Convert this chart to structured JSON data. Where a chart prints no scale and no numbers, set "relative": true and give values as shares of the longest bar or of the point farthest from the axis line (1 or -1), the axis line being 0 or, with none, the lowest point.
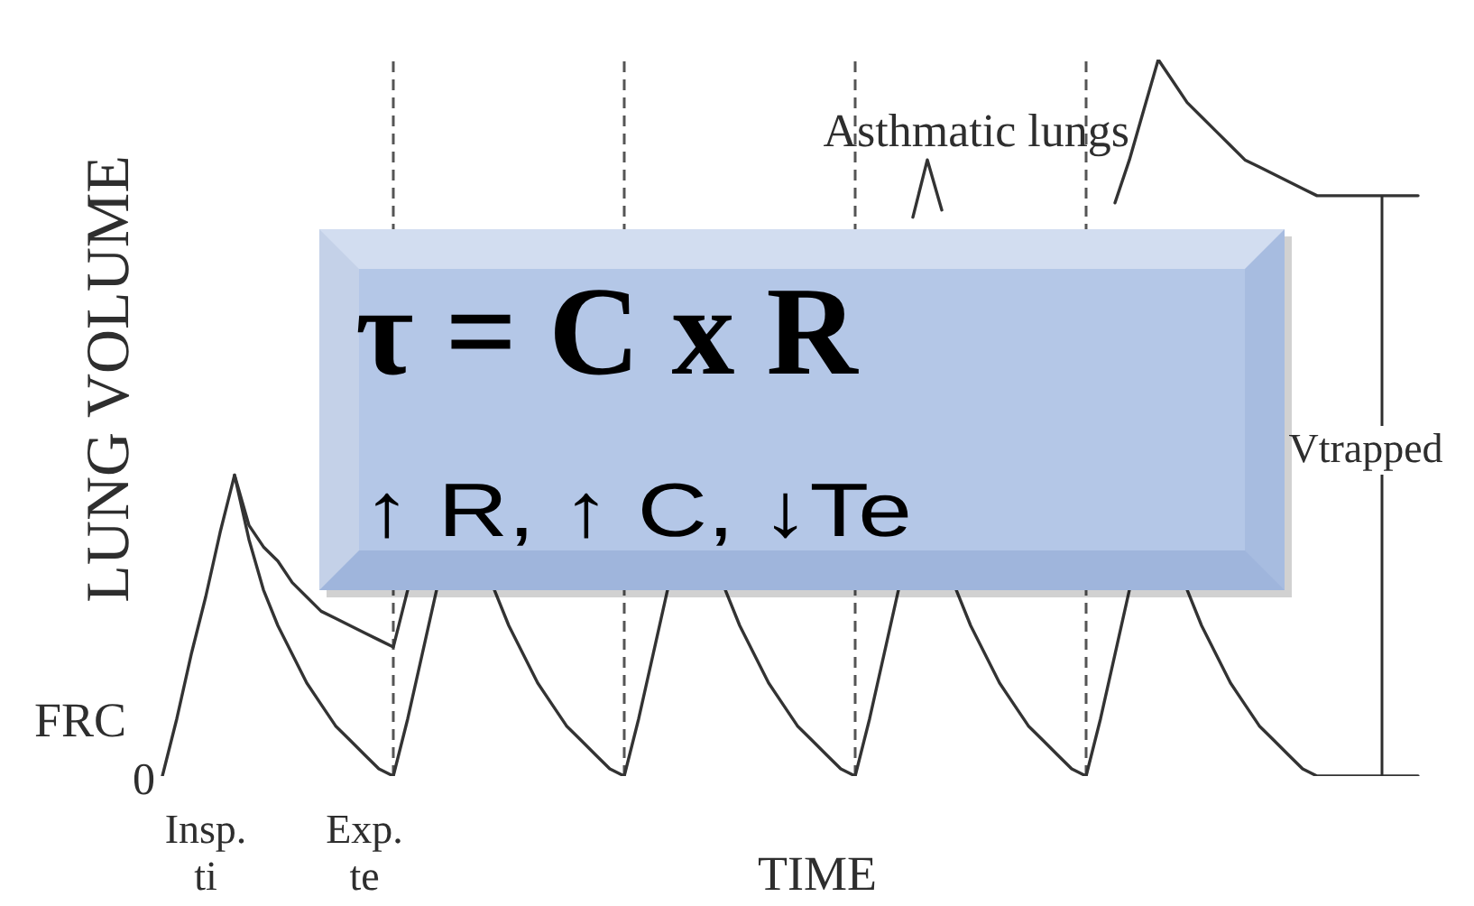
{
  "chart_data": {
    "type": "line",
    "relative": true,
    "xlabel": "TIME",
    "ylabel": "LUNG VOLUME",
    "categories": [
      null,
      null,
      null,
      "Insp.\nti",
      null,
      null,
      null,
      null,
      null,
      null,
      null,
      null,
      null,
      null,
      "Exp.\nte",
      null,
      null,
      null,
      null,
      null,
      null,
      null,
      null,
      null,
      null,
      null,
      null,
      null,
      null,
      null,
      null,
      null,
      null,
      null,
      null,
      null,
      null,
      null,
      null,
      null,
      null,
      null,
      null,
      null,
      null,
      null,
      null,
      null,
      null,
      null,
      null,
      null,
      null,
      null,
      null,
      null,
      null,
      null,
      null,
      null,
      null,
      null,
      null,
      null,
      null,
      null,
      null,
      null,
      null,
      null,
      null,
      null,
      null,
      null,
      null,
      null,
      null,
      null,
      null,
      null,
      null,
      null,
      null,
      null,
      null,
      null,
      null,
      null
    ],
    "series": [
      {
        "color": "#333333",
        "values": [
          0,
          0.08,
          0.17,
          0.25,
          0.34,
          0.42,
          0.33,
          0.26,
          0.21,
          0.17,
          0.13,
          0.1,
          0.07,
          0.05,
          0.03,
          0.01,
          0,
          0.08,
          0.17,
          0.26,
          null,
          null,
          null,
          0.26,
          0.21,
          0.17,
          0.13,
          0.1,
          0.07,
          0.05,
          0.03,
          0.01,
          0,
          0.08,
          0.17,
          0.26,
          null,
          null,
          null,
          0.26,
          0.21,
          0.17,
          0.13,
          0.1,
          0.07,
          0.05,
          0.03,
          0.01,
          0,
          0.08,
          0.17,
          0.26,
          null,
          null,
          null,
          0.26,
          0.21,
          0.17,
          0.13,
          0.1,
          0.07,
          0.05,
          0.03,
          0.01,
          0,
          0.08,
          0.17,
          0.26,
          null,
          null,
          null,
          0.26,
          0.21,
          0.17,
          0.13,
          0.1,
          0.07,
          0.05,
          0.03,
          0.01,
          0,
          0,
          0,
          0,
          0,
          0,
          0,
          0
        ]
      },
      {
        "name": "Asthmatic lungs",
        "color": "#333333",
        "values": [
          null,
          null,
          null,
          null,
          null,
          0.42,
          0.35,
          0.32,
          0.3,
          0.27,
          0.25,
          0.23,
          0.22,
          0.21,
          0.2,
          0.19,
          0.18,
          0.26,
          null,
          null,
          null,
          null,
          null,
          null,
          null,
          null,
          null,
          null,
          null,
          null,
          null,
          null,
          null,
          null,
          null,
          null,
          null,
          null,
          null,
          null,
          null,
          null,
          null,
          null,
          null,
          null,
          null,
          null,
          null,
          null,
          null,
          null,
          0.78,
          0.86,
          0.79,
          null,
          null,
          null,
          null,
          null,
          null,
          null,
          null,
          null,
          null,
          null,
          0.8,
          0.86,
          0.93,
          1,
          0.97,
          0.94,
          0.92,
          0.9,
          0.88,
          0.86,
          0.85,
          0.84,
          0.83,
          0.82,
          0.81,
          0.81,
          0.81,
          0.81,
          0.81,
          0.81,
          0.81,
          0.81
        ]
      }
    ],
    "marker": "none",
    "line_style": "solid",
    "annotations": [
      "τ = C x R",
      "↑ R, ↑ C, ↓Te",
      "Vtrapped",
      "FRC",
      "0"
    ]
  }
}
